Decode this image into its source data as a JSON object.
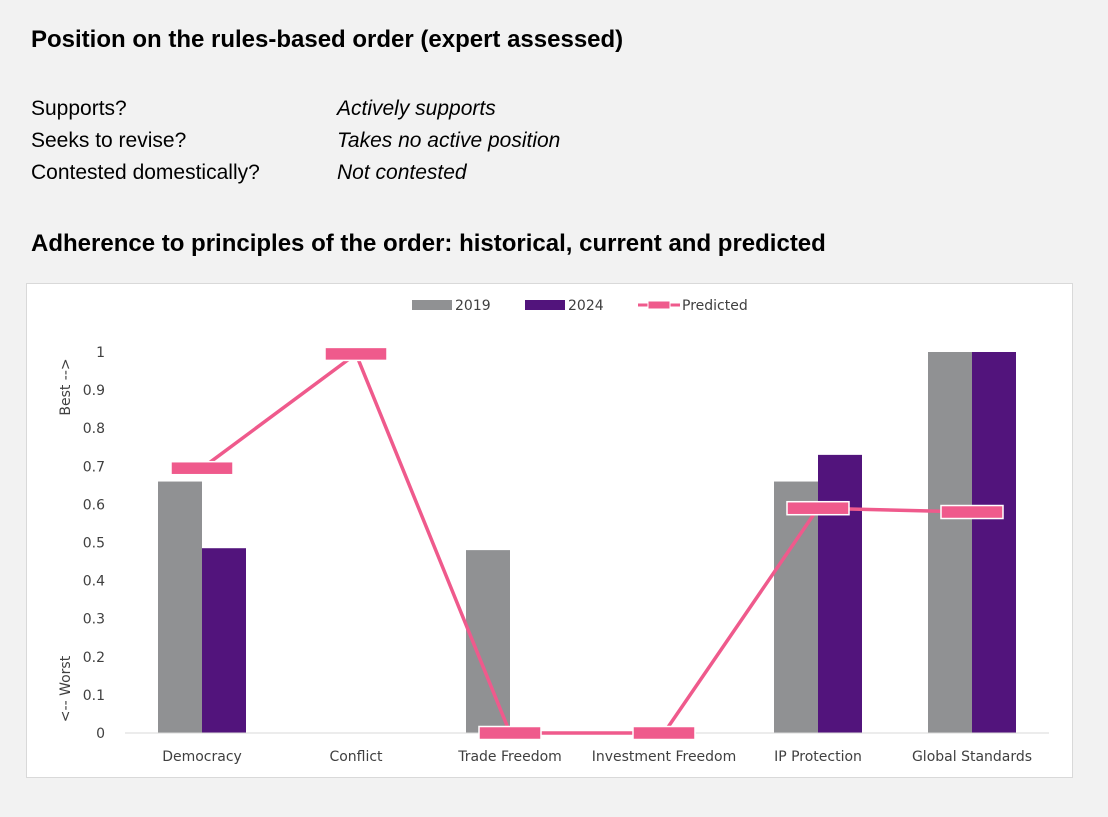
{
  "heading_position": "Position on the rules-based order (expert assessed)",
  "position_rows": [
    {
      "label": "Supports?",
      "value": "Actively supports"
    },
    {
      "label": "Seeks to revise?",
      "value": "Takes no active position"
    },
    {
      "label": "Contested domestically?",
      "value": "Not contested"
    }
  ],
  "heading_adherence": "Adherence to principles of the order: historical, current and predicted",
  "chart_data": {
    "type": "bar",
    "categories": [
      "Democracy",
      "Conflict",
      "Trade Freedom",
      "Investment Freedom",
      "IP Protection",
      "Global Standards"
    ],
    "series": [
      {
        "name": "2019",
        "type": "bar",
        "color": "#909193",
        "values": [
          0.66,
          null,
          0.48,
          null,
          0.66,
          1.0
        ]
      },
      {
        "name": "2024",
        "type": "bar",
        "color": "#52147c",
        "values": [
          0.485,
          null,
          null,
          null,
          0.73,
          1.0
        ]
      },
      {
        "name": "Predicted",
        "type": "line",
        "color": "#ef5a8c",
        "values": [
          0.695,
          0.995,
          0.0,
          0.0,
          0.59,
          0.58
        ]
      }
    ],
    "ylim": [
      0,
      1
    ],
    "yticks": [
      "0",
      "0.1",
      "0.2",
      "0.3",
      "0.4",
      "0.5",
      "0.6",
      "0.7",
      "0.8",
      "0.9",
      "1"
    ],
    "ylabel_top": "Best -->",
    "ylabel_bottom": "<-- Worst",
    "legend_position": "top-center",
    "grid": false
  }
}
